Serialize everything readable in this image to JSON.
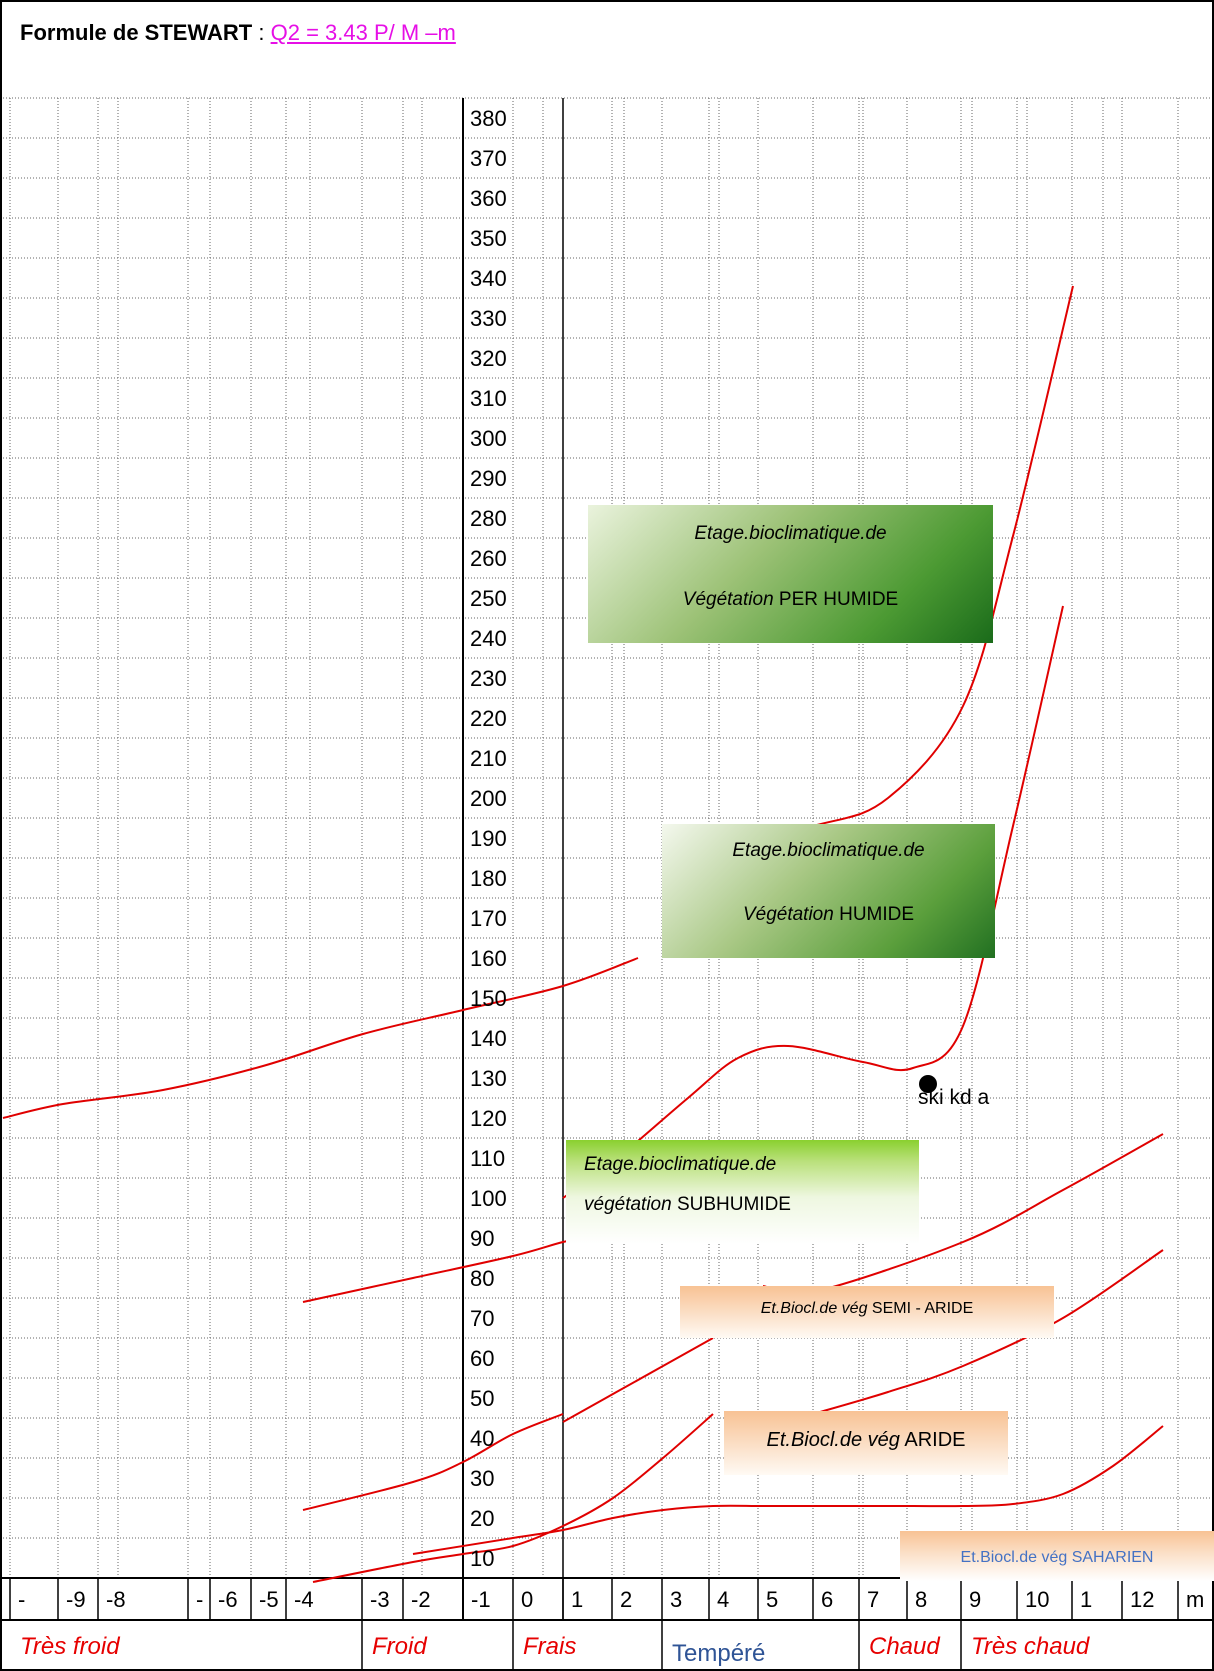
{
  "title": {
    "bold": "Formule de STEWART",
    "sep": " :",
    "formula": "Q2  =  3.43 P/ M –m"
  },
  "chart_data": {
    "type": "line",
    "y_ticks": [
      "10",
      "20",
      "30",
      "40",
      "50",
      "60",
      "70",
      "80",
      "90",
      "100",
      "110",
      "120",
      "130",
      "140",
      "150",
      "160",
      "170",
      "180",
      "190",
      "200",
      "210",
      "220",
      "230",
      "240",
      "250",
      "260",
      "280",
      "290",
      "300",
      "310",
      "320",
      "330",
      "340",
      "350",
      "360",
      "370",
      "380"
    ],
    "x_ticks": [
      "-",
      "-9",
      "-8",
      "-",
      "-6",
      "-5",
      "-4",
      "-3",
      "-2",
      "-1",
      "0",
      "1",
      "2",
      "3",
      "4",
      "5",
      "6",
      "7",
      "8",
      "9",
      "10",
      "1",
      "12",
      "m"
    ],
    "zones": [
      "Très froid",
      "Froid",
      "Frais",
      "Tempéré",
      "Chaud",
      "Très chaud"
    ],
    "regions": [
      {
        "l1_italic": "Etage.bioclimatique.de",
        "l2_italic": "Végétation",
        "l2_plain": " PER HUMIDE"
      },
      {
        "l1_italic": "Etage.bioclimatique.de",
        "l2_italic": "Végétation",
        "l2_plain": " HUMIDE"
      },
      {
        "l1_italic": "Etage.bioclimatique.de",
        "l2_italic": "végétation",
        "l2_plain": " SUBHUMIDE"
      },
      {
        "l1_italic": "Et.Biocl.de vég",
        "l1_plain": " SEMI  - ARIDE"
      },
      {
        "l1_italic": "Et.Biocl.de vég",
        "l1_plain": " ARIDE"
      },
      {
        "l1_plain": "Et.Biocl.de vég SAHARIEN"
      }
    ],
    "point": {
      "x": 8,
      "y": 125,
      "label": "ski   kd   a"
    },
    "curves": [
      {
        "name": "",
        "points": [
          [
            -10.2,
            122
          ],
          [
            -9,
            125.5
          ],
          [
            -7,
            129
          ],
          [
            -5,
            135
          ],
          [
            -3,
            143
          ],
          [
            -1,
            149
          ],
          [
            1,
            155
          ],
          [
            2.5,
            162
          ]
        ]
      },
      {
        "name": "",
        "points": [
          [
            3.5,
            188.5
          ],
          [
            6,
            195
          ],
          [
            7.5,
            202
          ],
          [
            9,
            225
          ],
          [
            10,
            275
          ],
          [
            11.2,
            340
          ]
        ]
      },
      {
        "name": "",
        "points": [
          [
            1,
            102
          ],
          [
            2,
            111
          ],
          [
            3.5,
            127
          ],
          [
            4.5,
            137
          ],
          [
            5.5,
            140
          ],
          [
            7,
            136
          ],
          [
            8,
            134.5
          ],
          [
            9,
            145
          ],
          [
            10,
            195
          ],
          [
            11,
            250
          ]
        ]
      },
      {
        "name": "",
        "points": [
          [
            -4.2,
            76
          ],
          [
            -2,
            82
          ],
          [
            0,
            87.5
          ],
          [
            1,
            91
          ],
          [
            1.5,
            92
          ]
        ]
      },
      {
        "name": "",
        "points": [
          [
            1,
            46
          ],
          [
            3,
            60
          ],
          [
            4,
            67
          ]
        ]
      },
      {
        "name": "",
        "points": [
          [
            5,
            80
          ],
          [
            6,
            78.5
          ],
          [
            9,
            91
          ],
          [
            11,
            104
          ],
          [
            13,
            118
          ]
        ]
      },
      {
        "name": "",
        "points": [
          [
            -4.2,
            24
          ],
          [
            -2,
            31
          ],
          [
            -1,
            36
          ],
          [
            0,
            43
          ],
          [
            1,
            48
          ]
        ]
      },
      {
        "name": "",
        "points": [
          [
            -4,
            6
          ],
          [
            -2,
            11
          ],
          [
            -1,
            13
          ],
          [
            0,
            15
          ],
          [
            1,
            20
          ],
          [
            2,
            27
          ],
          [
            3,
            37
          ],
          [
            4,
            48
          ]
        ]
      },
      {
        "name": "",
        "points": [
          [
            6,
            48
          ],
          [
            7.5,
            53.5
          ],
          [
            9,
            60
          ],
          [
            11,
            72
          ],
          [
            13,
            89
          ]
        ]
      },
      {
        "name": "",
        "points": [
          [
            -2,
            13
          ],
          [
            0,
            17
          ],
          [
            1,
            19
          ],
          [
            2,
            22
          ],
          [
            3,
            24
          ],
          [
            4,
            25
          ],
          [
            5,
            25
          ],
          [
            6,
            25
          ],
          [
            7,
            25
          ],
          [
            8,
            25
          ],
          [
            9,
            25
          ],
          [
            10,
            25.5
          ],
          [
            11,
            28
          ],
          [
            12,
            35
          ],
          [
            13,
            45
          ]
        ]
      }
    ]
  }
}
